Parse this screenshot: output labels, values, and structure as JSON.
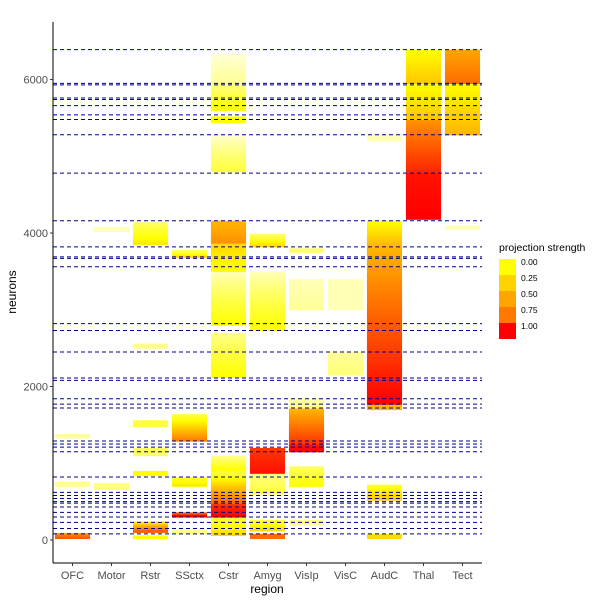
{
  "chart_data": {
    "type": "heatmap",
    "title": "",
    "xlabel": "region",
    "ylabel": "neurons",
    "categories": [
      "OFC",
      "Motor",
      "Rstr",
      "SSctx",
      "Cstr",
      "Amyg",
      "VisIp",
      "VisC",
      "AudC",
      "Thal",
      "Tect"
    ],
    "ylim": [
      -300,
      6750
    ],
    "y_ticks": [
      0,
      2000,
      4000,
      6000
    ],
    "y_tick_labels": [
      "0",
      "2000",
      "4000",
      "6000"
    ],
    "grid": false,
    "legend": {
      "title": "projection strength",
      "position": "right",
      "breaks": [
        0.0,
        0.25,
        0.5,
        0.75,
        1.0
      ],
      "labels": [
        "0.00",
        "0.25",
        "0.50",
        "0.75",
        "1.00"
      ],
      "colors": [
        "#FFFF00",
        "#FFD200",
        "#FFA500",
        "#FF7800",
        "#FF0000"
      ]
    },
    "color_scale": {
      "low": "#FFFFFF",
      "mid": "#FFFF00",
      "high": "#FF0000"
    },
    "boundary_line_color": "#00008B",
    "boundaries": [
      80,
      150,
      230,
      300,
      360,
      430,
      480,
      500,
      540,
      580,
      620,
      820,
      1150,
      1210,
      1250,
      1290,
      1720,
      1770,
      1840,
      2080,
      2110,
      2450,
      2730,
      2820,
      3560,
      3670,
      3690,
      3820,
      4160,
      4780,
      5280,
      5480,
      5540,
      5660,
      5740,
      5760,
      5930,
      5950,
      6390
    ],
    "blocks": [
      {
        "region": "OFC",
        "y0": 20,
        "y1": 90,
        "value_bottom": 0.75,
        "value_top": 0.6
      },
      {
        "region": "OFC",
        "y0": 700,
        "y1": 760,
        "value_bottom": 0.1,
        "value_top": 0.1
      },
      {
        "region": "OFC",
        "y0": 1330,
        "y1": 1380,
        "value_bottom": 0.08,
        "value_top": 0.08
      },
      {
        "region": "Motor",
        "y0": 660,
        "y1": 740,
        "value_bottom": 0.12,
        "value_top": 0.12
      },
      {
        "region": "Motor",
        "y0": 4020,
        "y1": 4080,
        "value_bottom": 0.05,
        "value_top": 0.05
      },
      {
        "region": "Rstr",
        "y0": 20,
        "y1": 60,
        "value_bottom": 0.3,
        "value_top": 0.3
      },
      {
        "region": "Rstr",
        "y0": 100,
        "y1": 240,
        "value_bottom": 0.75,
        "value_top": 0.35
      },
      {
        "region": "Rstr",
        "y0": 840,
        "y1": 900,
        "value_bottom": 0.3,
        "value_top": 0.3
      },
      {
        "region": "Rstr",
        "y0": 1100,
        "y1": 1200,
        "value_bottom": 0.15,
        "value_top": 0.15
      },
      {
        "region": "Rstr",
        "y0": 1480,
        "y1": 1560,
        "value_bottom": 0.2,
        "value_top": 0.2
      },
      {
        "region": "Rstr",
        "y0": 2500,
        "y1": 2560,
        "value_bottom": 0.1,
        "value_top": 0.1
      },
      {
        "region": "Rstr",
        "y0": 3850,
        "y1": 4140,
        "value_bottom": 0.35,
        "value_top": 0.15
      },
      {
        "region": "SSctx",
        "y0": 80,
        "y1": 140,
        "value_bottom": 0.1,
        "value_top": 0.1
      },
      {
        "region": "SSctx",
        "y0": 300,
        "y1": 360,
        "value_bottom": 1.0,
        "value_top": 0.75
      },
      {
        "region": "SSctx",
        "y0": 700,
        "y1": 820,
        "value_bottom": 0.35,
        "value_top": 0.25
      },
      {
        "region": "SSctx",
        "y0": 1290,
        "y1": 1640,
        "value_bottom": 0.65,
        "value_top": 0.2
      },
      {
        "region": "SSctx",
        "y0": 3680,
        "y1": 3780,
        "value_bottom": 0.4,
        "value_top": 0.15
      },
      {
        "region": "Cstr",
        "y0": 60,
        "y1": 300,
        "value_bottom": 0.4,
        "value_top": 0.2
      },
      {
        "region": "Cstr",
        "y0": 300,
        "y1": 480,
        "value_bottom": 1.0,
        "value_top": 0.85
      },
      {
        "region": "Cstr",
        "y0": 480,
        "y1": 900,
        "value_bottom": 0.7,
        "value_top": 0.2
      },
      {
        "region": "Cstr",
        "y0": 900,
        "y1": 1100,
        "value_bottom": 0.3,
        "value_top": 0.1
      },
      {
        "region": "Cstr",
        "y0": 2120,
        "y1": 2700,
        "value_bottom": 0.3,
        "value_top": 0.1
      },
      {
        "region": "Cstr",
        "y0": 2800,
        "y1": 3500,
        "value_bottom": 0.3,
        "value_top": 0.05
      },
      {
        "region": "Cstr",
        "y0": 3500,
        "y1": 3870,
        "value_bottom": 0.3,
        "value_top": 0.4
      },
      {
        "region": "Cstr",
        "y0": 3870,
        "y1": 4160,
        "value_bottom": 0.6,
        "value_top": 0.5
      },
      {
        "region": "Cstr",
        "y0": 4800,
        "y1": 5300,
        "value_bottom": 0.2,
        "value_top": 0.02
      },
      {
        "region": "Cstr",
        "y0": 5440,
        "y1": 5520,
        "value_bottom": 0.3,
        "value_top": 0.3
      },
      {
        "region": "Cstr",
        "y0": 5600,
        "y1": 5950,
        "value_bottom": 0.3,
        "value_top": 0.1
      },
      {
        "region": "Cstr",
        "y0": 5950,
        "y1": 6350,
        "value_bottom": 0.08,
        "value_top": 0.02
      },
      {
        "region": "Amyg",
        "y0": 20,
        "y1": 80,
        "value_bottom": 0.7,
        "value_top": 0.7
      },
      {
        "region": "Amyg",
        "y0": 120,
        "y1": 260,
        "value_bottom": 0.4,
        "value_top": 0.2
      },
      {
        "region": "Amyg",
        "y0": 600,
        "y1": 900,
        "value_bottom": 0.2,
        "value_top": 0.1
      },
      {
        "region": "Amyg",
        "y0": 870,
        "y1": 1200,
        "value_bottom": 0.95,
        "value_top": 0.85
      },
      {
        "region": "Amyg",
        "y0": 2730,
        "y1": 3500,
        "value_bottom": 0.3,
        "value_top": 0.05
      },
      {
        "region": "Amyg",
        "y0": 3820,
        "y1": 3990,
        "value_bottom": 0.4,
        "value_top": 0.15
      },
      {
        "region": "VisIp",
        "y0": 200,
        "y1": 260,
        "value_bottom": 0.1,
        "value_top": 0.1
      },
      {
        "region": "VisIp",
        "y0": 700,
        "y1": 960,
        "value_bottom": 0.3,
        "value_top": 0.15
      },
      {
        "region": "VisIp",
        "y0": 1150,
        "y1": 1250,
        "value_bottom": 1.0,
        "value_top": 0.95
      },
      {
        "region": "VisIp",
        "y0": 1250,
        "y1": 1720,
        "value_bottom": 0.85,
        "value_top": 0.5
      },
      {
        "region": "VisIp",
        "y0": 1720,
        "y1": 1850,
        "value_bottom": 0.1,
        "value_top": 0.05
      },
      {
        "region": "VisIp",
        "y0": 3000,
        "y1": 3400,
        "value_bottom": 0.08,
        "value_top": 0.05
      },
      {
        "region": "VisIp",
        "y0": 3750,
        "y1": 3800,
        "value_bottom": 0.15,
        "value_top": 0.15
      },
      {
        "region": "VisC",
        "y0": 2150,
        "y1": 2450,
        "value_bottom": 0.12,
        "value_top": 0.08
      },
      {
        "region": "VisC",
        "y0": 3000,
        "y1": 3400,
        "value_bottom": 0.05,
        "value_top": 0.05
      },
      {
        "region": "AudC",
        "y0": 20,
        "y1": 80,
        "value_bottom": 0.4,
        "value_top": 0.4
      },
      {
        "region": "AudC",
        "y0": 520,
        "y1": 720,
        "value_bottom": 0.45,
        "value_top": 0.25
      },
      {
        "region": "AudC",
        "y0": 1700,
        "y1": 1770,
        "value_bottom": 0.5,
        "value_top": 0.5
      },
      {
        "region": "AudC",
        "y0": 1770,
        "y1": 2820,
        "value_bottom": 1.0,
        "value_top": 0.75
      },
      {
        "region": "AudC",
        "y0": 2820,
        "y1": 3820,
        "value_bottom": 0.75,
        "value_top": 0.5
      },
      {
        "region": "AudC",
        "y0": 3820,
        "y1": 4160,
        "value_bottom": 0.5,
        "value_top": 0.3
      },
      {
        "region": "AudC",
        "y0": 5200,
        "y1": 5300,
        "value_bottom": 0.05,
        "value_top": 0.05
      },
      {
        "region": "Thal",
        "y0": 4180,
        "y1": 4780,
        "value_bottom": 1.0,
        "value_top": 0.95
      },
      {
        "region": "Thal",
        "y0": 4780,
        "y1": 5480,
        "value_bottom": 0.9,
        "value_top": 0.6
      },
      {
        "region": "Thal",
        "y0": 5480,
        "y1": 5950,
        "value_bottom": 0.45,
        "value_top": 0.3
      },
      {
        "region": "Thal",
        "y0": 5950,
        "y1": 6390,
        "value_bottom": 0.45,
        "value_top": 0.3
      },
      {
        "region": "Tect",
        "y0": 4050,
        "y1": 4100,
        "value_bottom": 0.05,
        "value_top": 0.05
      },
      {
        "region": "Tect",
        "y0": 5280,
        "y1": 5950,
        "value_bottom": 0.5,
        "value_top": 0.3
      },
      {
        "region": "Tect",
        "y0": 5950,
        "y1": 6390,
        "value_bottom": 0.7,
        "value_top": 0.55
      }
    ]
  }
}
